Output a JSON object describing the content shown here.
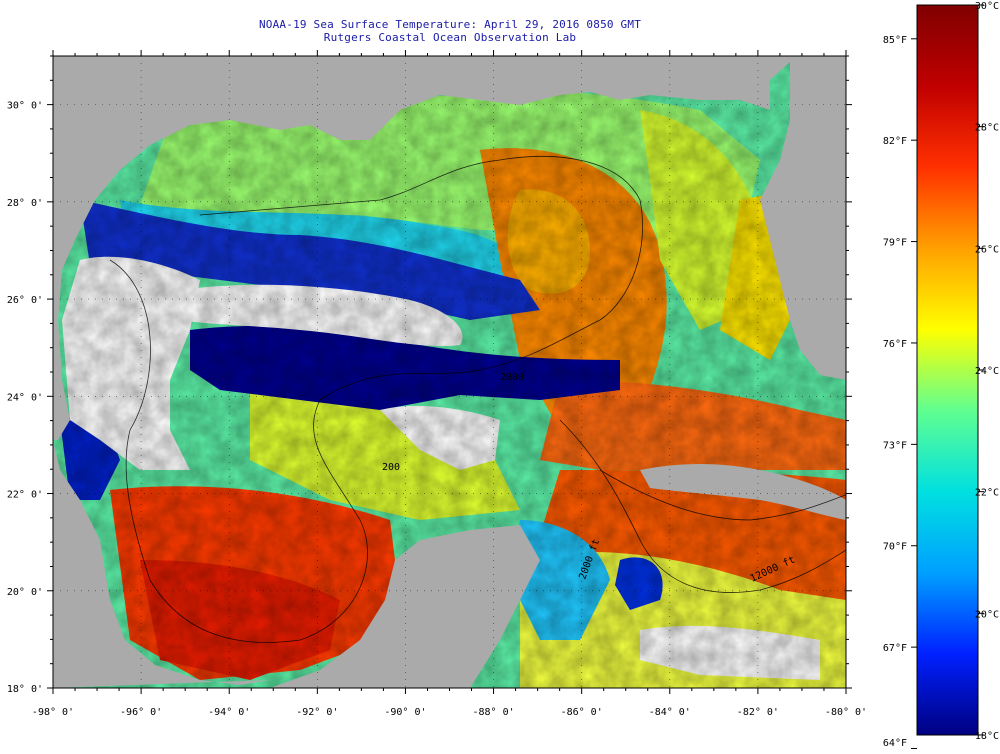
{
  "title": {
    "line1": "NOAA-19 Sea Surface Temperature:  April 29, 2016 0850 GMT",
    "line2": "Rutgers Coastal Ocean Observation Lab"
  },
  "map": {
    "lon_range": [
      -98,
      -80
    ],
    "lat_range": [
      18,
      31
    ],
    "lon_ticks": [
      "-98° 0'",
      "-96° 0'",
      "-94° 0'",
      "-92° 0'",
      "-90° 0'",
      "-88° 0'",
      "-86° 0'",
      "-84° 0'",
      "-82° 0'",
      "-80° 0'"
    ],
    "lat_ticks": [
      "18° 0'",
      "20° 0'",
      "22° 0'",
      "24° 0'",
      "26° 0'",
      "28° 0'",
      "30° 0'"
    ],
    "contour_labels": [
      "2000",
      "200",
      "2000 ft",
      "12000 ft"
    ],
    "colors": {
      "land": "#aaaaaa",
      "cloud": "#ffffff",
      "border": "#000000"
    }
  },
  "colorbar": {
    "fahrenheit": [
      "85°F",
      "82°F",
      "79°F",
      "76°F",
      "73°F",
      "70°F",
      "67°F",
      "64°F"
    ],
    "celsius": [
      "30°C",
      "28°C",
      "26°C",
      "24°C",
      "22°C",
      "20°C",
      "18°C"
    ],
    "range_c": [
      18,
      30
    ],
    "stops": [
      "#000080",
      "#0020ff",
      "#00a0ff",
      "#00e0e0",
      "#60ff90",
      "#ffff00",
      "#ffa000",
      "#ff3000",
      "#c00000",
      "#800000"
    ]
  }
}
